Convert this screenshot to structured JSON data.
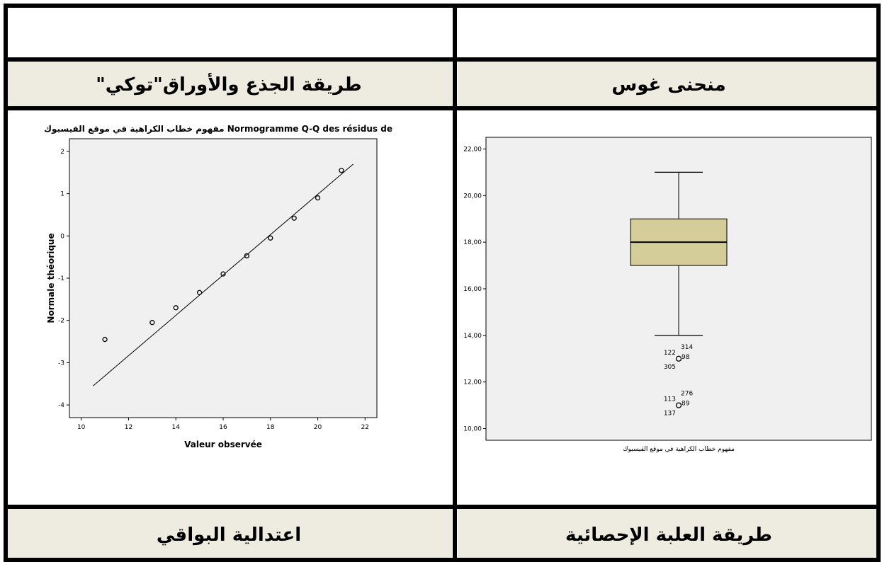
{
  "headers": {
    "top_left": "",
    "top_right": "",
    "stem_leaf": "طريقة الجذع والأوراق\"توكي\"",
    "gauss": "منحنى غوس",
    "residuals": "اعتدالية البواقي",
    "boxplot": "طريقة العلبة الإحصائية"
  },
  "colors": {
    "header_bg": "#eeece1",
    "plot_bg": "#f0f0f0",
    "box_fill": "#d4cd9a"
  },
  "chart_data": [
    {
      "type": "scatter",
      "title": "مفهوم خطاب الكراهية في موقع الفيسبوك Normogramme Q-Q des résidus de",
      "xlabel": "Valeur observée",
      "ylabel": "Normale théorique",
      "xlim": [
        9.5,
        22.5
      ],
      "ylim": [
        -4.3,
        2.3
      ],
      "xticks": [
        10,
        12,
        14,
        16,
        18,
        20,
        22
      ],
      "yticks": [
        -4,
        -3,
        -2,
        -1,
        0,
        1,
        2
      ],
      "points": [
        {
          "x": 11,
          "y": -2.45
        },
        {
          "x": 13,
          "y": -2.05
        },
        {
          "x": 14,
          "y": -1.7
        },
        {
          "x": 15,
          "y": -1.34
        },
        {
          "x": 16,
          "y": -0.9
        },
        {
          "x": 17,
          "y": -0.47
        },
        {
          "x": 18,
          "y": -0.05
        },
        {
          "x": 19,
          "y": 0.42
        },
        {
          "x": 20,
          "y": 0.9
        },
        {
          "x": 21,
          "y": 1.55
        }
      ],
      "reference_line": [
        {
          "x": 10.5,
          "y": -3.55
        },
        {
          "x": 21.5,
          "y": 1.7
        }
      ],
      "grid": false
    },
    {
      "type": "box",
      "title": "",
      "xlabel": "مفهوم خطاب الكراهية في موقع الفيسبوك",
      "ylabel": "",
      "ylim": [
        9.5,
        22.5
      ],
      "yticks": [
        10,
        12,
        14,
        16,
        18,
        20,
        22
      ],
      "ytick_labels": [
        "10,00",
        "12,00",
        "14,00",
        "16,00",
        "18,00",
        "20,00",
        "22,00"
      ],
      "whisker_low": 14,
      "q1": 17,
      "median": 18,
      "q3": 19,
      "whisker_high": 21,
      "outliers": [
        {
          "value": 13,
          "labels": [
            "314",
            "122",
            "98",
            "305"
          ]
        },
        {
          "value": 11,
          "labels": [
            "276",
            "113",
            "89",
            "137"
          ]
        }
      ],
      "grid": false
    }
  ]
}
